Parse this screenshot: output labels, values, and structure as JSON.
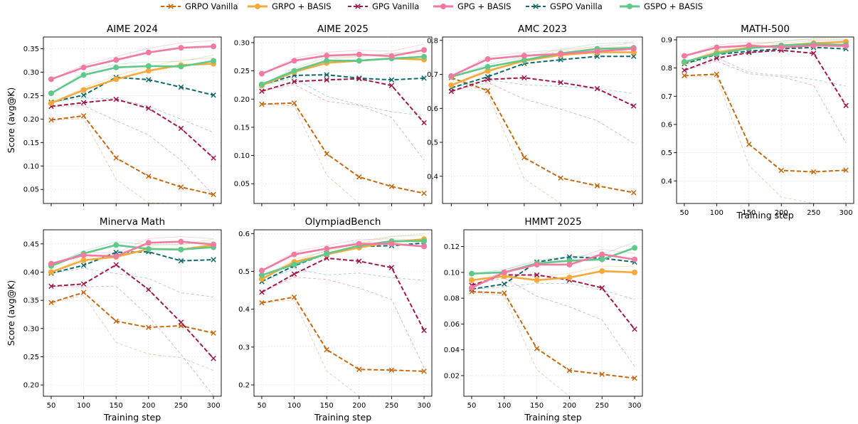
{
  "legend": {
    "items": [
      {
        "name": "GRPO Vanilla",
        "style": "vanilla",
        "color": "#c8690f"
      },
      {
        "name": "GRPO + BASIS",
        "style": "basis",
        "color": "#f6a93b"
      },
      {
        "name": "GPG Vanilla",
        "style": "vanilla",
        "color": "#a3174a"
      },
      {
        "name": "GPG + BASIS",
        "style": "basis",
        "color": "#f27aa0"
      },
      {
        "name": "GSPO Vanilla",
        "style": "vanilla",
        "color": "#0f6b6b"
      },
      {
        "name": "GSPO + BASIS",
        "style": "basis",
        "color": "#5ec98a"
      }
    ]
  },
  "chart_data": [
    {
      "type": "line",
      "title": "AIME 2024",
      "ylabel": "Score (avg@K)",
      "xlabel": "",
      "x": [
        50,
        100,
        150,
        200,
        250,
        300
      ],
      "xlim": [
        38,
        312
      ],
      "ylim": [
        0.02,
        0.375
      ],
      "yticks": [
        0.05,
        0.1,
        0.15,
        0.2,
        0.25,
        0.3,
        0.35
      ],
      "ydecimals": 2,
      "series": [
        {
          "name": "GRPO Vanilla",
          "values": [
            0.198,
            0.207,
            0.117,
            0.078,
            0.055,
            0.039
          ]
        },
        {
          "name": "GRPO + BASIS",
          "values": [
            0.234,
            0.262,
            0.285,
            0.303,
            0.315,
            0.318
          ]
        },
        {
          "name": "GPG Vanilla",
          "values": [
            0.227,
            0.235,
            0.242,
            0.223,
            0.18,
            0.117
          ]
        },
        {
          "name": "GPG + BASIS",
          "values": [
            0.285,
            0.31,
            0.326,
            0.342,
            0.352,
            0.355
          ]
        },
        {
          "name": "GSPO Vanilla",
          "values": [
            0.236,
            0.251,
            0.289,
            0.284,
            0.268,
            0.251
          ]
        },
        {
          "name": "GSPO + BASIS",
          "values": [
            0.255,
            0.294,
            0.31,
            0.313,
            0.312,
            0.324
          ]
        }
      ]
    },
    {
      "type": "line",
      "title": "AIME 2025",
      "ylabel": "",
      "xlabel": "",
      "x": [
        50,
        100,
        150,
        200,
        250,
        300
      ],
      "xlim": [
        38,
        312
      ],
      "ylim": [
        0.015,
        0.31
      ],
      "yticks": [
        0.05,
        0.1,
        0.15,
        0.2,
        0.25,
        0.3
      ],
      "ydecimals": 2,
      "series": [
        {
          "name": "GRPO Vanilla",
          "values": [
            0.191,
            0.193,
            0.103,
            0.062,
            0.045,
            0.033
          ]
        },
        {
          "name": "GRPO + BASIS",
          "values": [
            0.224,
            0.248,
            0.264,
            0.268,
            0.272,
            0.27
          ]
        },
        {
          "name": "GPG Vanilla",
          "values": [
            0.214,
            0.231,
            0.234,
            0.236,
            0.224,
            0.158
          ]
        },
        {
          "name": "GPG + BASIS",
          "values": [
            0.245,
            0.268,
            0.277,
            0.279,
            0.276,
            0.287
          ]
        },
        {
          "name": "GSPO Vanilla",
          "values": [
            0.225,
            0.242,
            0.243,
            0.237,
            0.234,
            0.237
          ]
        },
        {
          "name": "GSPO + BASIS",
          "values": [
            0.226,
            0.25,
            0.268,
            0.268,
            0.272,
            0.275
          ]
        }
      ]
    },
    {
      "type": "line",
      "title": "AMC 2023",
      "ylabel": "",
      "xlabel": "",
      "x": [
        50,
        100,
        150,
        200,
        250,
        300
      ],
      "xlim": [
        38,
        312
      ],
      "ylim": [
        0.32,
        0.81
      ],
      "yticks": [
        0.4,
        0.5,
        0.6,
        0.7,
        0.8
      ],
      "ydecimals": 1,
      "series": [
        {
          "name": "GRPO Vanilla",
          "values": [
            0.69,
            0.652,
            0.455,
            0.395,
            0.372,
            0.352
          ]
        },
        {
          "name": "GRPO + BASIS",
          "values": [
            0.668,
            0.71,
            0.74,
            0.757,
            0.765,
            0.765
          ]
        },
        {
          "name": "GPG Vanilla",
          "values": [
            0.65,
            0.685,
            0.69,
            0.676,
            0.658,
            0.607
          ]
        },
        {
          "name": "GPG + BASIS",
          "values": [
            0.695,
            0.745,
            0.755,
            0.76,
            0.768,
            0.775
          ]
        },
        {
          "name": "GSPO Vanilla",
          "values": [
            0.66,
            0.693,
            0.732,
            0.743,
            0.753,
            0.753
          ]
        },
        {
          "name": "GSPO + BASIS",
          "values": [
            0.693,
            0.722,
            0.742,
            0.762,
            0.775,
            0.778
          ]
        }
      ]
    },
    {
      "type": "line",
      "title": "MATH-500",
      "ylabel": "",
      "xlabel": "Training step",
      "x": [
        50,
        100,
        150,
        200,
        250,
        300
      ],
      "xlim": [
        38,
        312
      ],
      "ylim": [
        0.32,
        0.91
      ],
      "yticks": [
        0.4,
        0.5,
        0.6,
        0.7,
        0.8,
        0.9
      ],
      "ydecimals": 1,
      "series": [
        {
          "name": "GRPO Vanilla",
          "values": [
            0.773,
            0.778,
            0.53,
            0.437,
            0.432,
            0.438
          ]
        },
        {
          "name": "GRPO + BASIS",
          "values": [
            0.82,
            0.855,
            0.873,
            0.88,
            0.888,
            0.893
          ]
        },
        {
          "name": "GPG Vanilla",
          "values": [
            0.792,
            0.835,
            0.855,
            0.863,
            0.852,
            0.667
          ]
        },
        {
          "name": "GPG + BASIS",
          "values": [
            0.843,
            0.873,
            0.88,
            0.873,
            0.88,
            0.878
          ]
        },
        {
          "name": "GSPO Vanilla",
          "values": [
            0.815,
            0.848,
            0.86,
            0.868,
            0.873,
            0.868
          ]
        },
        {
          "name": "GSPO + BASIS",
          "values": [
            0.822,
            0.85,
            0.87,
            0.88,
            0.885,
            0.882
          ]
        }
      ]
    },
    {
      "type": "line",
      "title": "Minerva Math",
      "ylabel": "Score (avg@K)",
      "xlabel": "Training step",
      "x": [
        50,
        100,
        150,
        200,
        250,
        300
      ],
      "xlim": [
        38,
        312
      ],
      "ylim": [
        0.18,
        0.475
      ],
      "yticks": [
        0.2,
        0.25,
        0.3,
        0.35,
        0.4,
        0.45
      ],
      "ydecimals": 2,
      "series": [
        {
          "name": "GRPO Vanilla",
          "values": [
            0.346,
            0.364,
            0.313,
            0.302,
            0.305,
            0.292
          ]
        },
        {
          "name": "GRPO + BASIS",
          "values": [
            0.4,
            0.421,
            0.427,
            0.441,
            0.44,
            0.448
          ]
        },
        {
          "name": "GPG Vanilla",
          "values": [
            0.375,
            0.379,
            0.413,
            0.369,
            0.311,
            0.247
          ]
        },
        {
          "name": "GPG + BASIS",
          "values": [
            0.415,
            0.43,
            0.428,
            0.452,
            0.454,
            0.449
          ]
        },
        {
          "name": "GSPO Vanilla",
          "values": [
            0.398,
            0.412,
            0.435,
            0.436,
            0.42,
            0.422
          ]
        },
        {
          "name": "GSPO + BASIS",
          "values": [
            0.411,
            0.433,
            0.448,
            0.441,
            0.44,
            0.444
          ]
        }
      ]
    },
    {
      "type": "line",
      "title": "OlympiadBench",
      "ylabel": "",
      "xlabel": "Training step",
      "x": [
        50,
        100,
        150,
        200,
        250,
        300
      ],
      "xlim": [
        38,
        312
      ],
      "ylim": [
        0.17,
        0.61
      ],
      "yticks": [
        0.2,
        0.3,
        0.4,
        0.5,
        0.6
      ],
      "ydecimals": 1,
      "series": [
        {
          "name": "GRPO Vanilla",
          "values": [
            0.417,
            0.432,
            0.293,
            0.241,
            0.239,
            0.236
          ]
        },
        {
          "name": "GRPO + BASIS",
          "values": [
            0.48,
            0.525,
            0.545,
            0.563,
            0.578,
            0.585
          ]
        },
        {
          "name": "GPG Vanilla",
          "values": [
            0.445,
            0.493,
            0.535,
            0.527,
            0.51,
            0.344
          ]
        },
        {
          "name": "GPG + BASIS",
          "values": [
            0.502,
            0.545,
            0.56,
            0.573,
            0.573,
            0.566
          ]
        },
        {
          "name": "GSPO Vanilla",
          "values": [
            0.473,
            0.515,
            0.547,
            0.566,
            0.568,
            0.575
          ]
        },
        {
          "name": "GSPO + BASIS",
          "values": [
            0.49,
            0.518,
            0.547,
            0.568,
            0.58,
            0.58
          ]
        }
      ]
    },
    {
      "type": "line",
      "title": "HMMT 2025",
      "ylabel": "",
      "xlabel": "Training step",
      "x": [
        50,
        100,
        150,
        200,
        250,
        300
      ],
      "xlim": [
        38,
        312
      ],
      "ylim": [
        0.004,
        0.133
      ],
      "yticks": [
        0.02,
        0.04,
        0.06,
        0.08,
        0.1,
        0.12
      ],
      "ydecimals": 2,
      "series": [
        {
          "name": "GRPO Vanilla",
          "values": [
            0.085,
            0.084,
            0.041,
            0.024,
            0.021,
            0.018
          ]
        },
        {
          "name": "GRPO + BASIS",
          "values": [
            0.094,
            0.097,
            0.094,
            0.096,
            0.101,
            0.1
          ]
        },
        {
          "name": "GPG Vanilla",
          "values": [
            0.09,
            0.098,
            0.098,
            0.094,
            0.088,
            0.056
          ]
        },
        {
          "name": "GPG + BASIS",
          "values": [
            0.088,
            0.1,
            0.106,
            0.106,
            0.114,
            0.11
          ]
        },
        {
          "name": "GSPO Vanilla",
          "values": [
            0.087,
            0.091,
            0.108,
            0.112,
            0.111,
            0.108
          ]
        },
        {
          "name": "GSPO + BASIS",
          "values": [
            0.099,
            0.1,
            0.107,
            0.109,
            0.11,
            0.119
          ]
        }
      ]
    }
  ]
}
